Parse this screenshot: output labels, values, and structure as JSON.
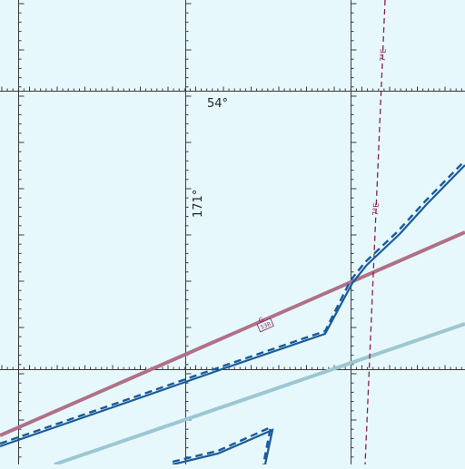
{
  "map": {
    "background": "#e6f8fc",
    "labels": {
      "latitude": "54°",
      "longitude": "171°",
      "isogonic_top": "7°E",
      "isogonic_mid": "7°E",
      "airway_name": "G",
      "airway_mea": "538"
    },
    "colors": {
      "grid": "#3a3a3a",
      "boundary": "#1a5a9a",
      "airway": "#b07088",
      "route_light": "#9cc6d2",
      "isogonic": "#8a1e4a"
    }
  }
}
